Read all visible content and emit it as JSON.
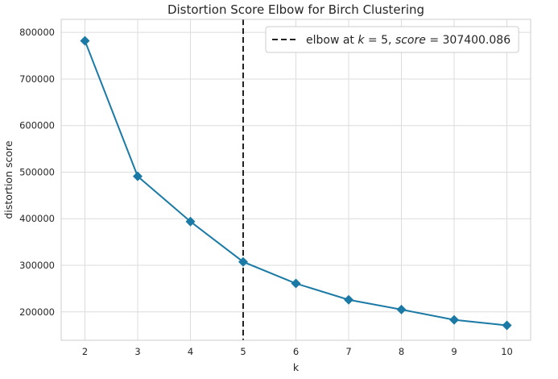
{
  "chart_data": {
    "type": "line",
    "title": "Distortion Score Elbow for Birch Clustering",
    "xlabel": "k",
    "ylabel": "distortion score",
    "x": [
      2,
      3,
      4,
      5,
      6,
      7,
      8,
      9,
      10
    ],
    "series": [
      {
        "values": [
          782000,
          491000,
          394000,
          307400,
          261000,
          226000,
          205000,
          183000,
          171000
        ]
      }
    ],
    "xlim": [
      1.55,
      10.45
    ],
    "ylim": [
      139000,
      828000
    ],
    "xticks": [
      2,
      3,
      4,
      5,
      6,
      7,
      8,
      9,
      10
    ],
    "yticks": [
      200000,
      300000,
      400000,
      500000,
      600000,
      700000,
      800000
    ],
    "elbow": {
      "k": 5,
      "score": 307400.086,
      "legend_label": "elbow at k = 5, score = 307400.086",
      "legend_parts": [
        "elbow at ",
        "k",
        " = 5, ",
        "score",
        " = 307400.086"
      ]
    },
    "grid": true,
    "legend_position": "top-right",
    "colors": {
      "line": "#1a7aa5",
      "elbow": "#222222",
      "grid": "#dcdcdc",
      "frame": "#cccccc"
    }
  }
}
